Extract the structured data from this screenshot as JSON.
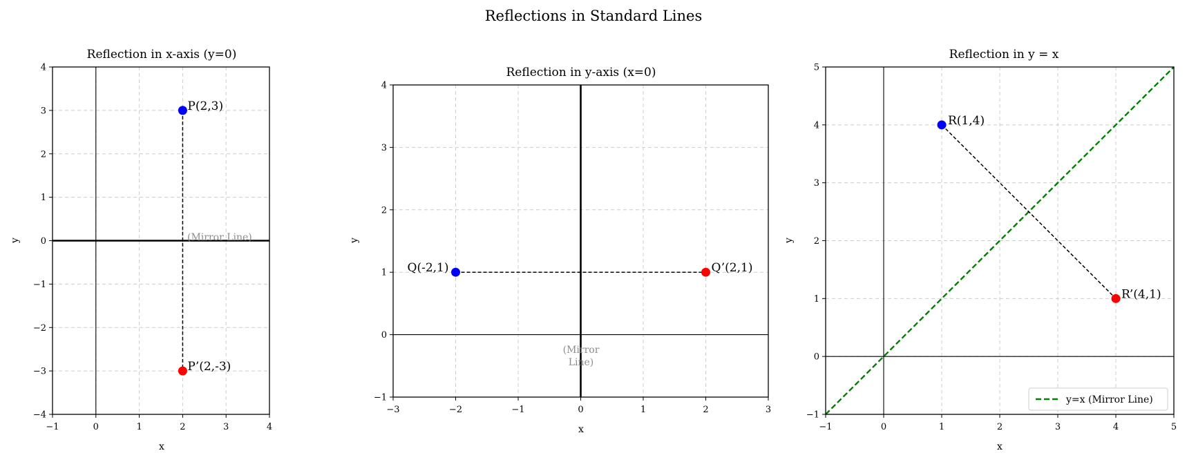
{
  "figure": {
    "suptitle": "Reflections in Standard Lines"
  },
  "chart_data": [
    {
      "type": "scatter",
      "title": "Reflection in x-axis (y=0)",
      "xlabel": "x",
      "ylabel": "y",
      "xlim": [
        -1,
        4
      ],
      "ylim": [
        -4,
        4
      ],
      "xticks": [
        -1,
        0,
        1,
        2,
        3,
        4
      ],
      "yticks": [
        -4,
        -3,
        -2,
        -1,
        0,
        1,
        2,
        3,
        4
      ],
      "xtick_labels": [
        "−1",
        "0",
        "1",
        "2",
        "3",
        "4"
      ],
      "ytick_labels": [
        "−4",
        "−3",
        "−2",
        "−1",
        "0",
        "1",
        "2",
        "3",
        "4"
      ],
      "grid": true,
      "mirror_line": {
        "kind": "horizontal",
        "value": 0
      },
      "points": [
        {
          "label": "P(2,3)",
          "x": 2,
          "y": 3,
          "color": "#0000ff"
        },
        {
          "label": "P’(2,-3)",
          "x": 2,
          "y": -3,
          "color": "#ff0000"
        }
      ],
      "annotation": {
        "text": "(Mirror Line)"
      }
    },
    {
      "type": "scatter",
      "title": "Reflection in y-axis (x=0)",
      "xlabel": "x",
      "ylabel": "y",
      "xlim": [
        -3,
        3
      ],
      "ylim": [
        -1,
        4
      ],
      "xticks": [
        -3,
        -2,
        -1,
        0,
        1,
        2,
        3
      ],
      "yticks": [
        -1,
        0,
        1,
        2,
        3,
        4
      ],
      "xtick_labels": [
        "−3",
        "−2",
        "−1",
        "0",
        "1",
        "2",
        "3"
      ],
      "ytick_labels": [
        "−1",
        "0",
        "1",
        "2",
        "3",
        "4"
      ],
      "grid": true,
      "mirror_line": {
        "kind": "vertical",
        "value": 0
      },
      "points": [
        {
          "label": "Q(-2,1)",
          "x": -2,
          "y": 1,
          "color": "#0000ff"
        },
        {
          "label": "Q’(2,1)",
          "x": 2,
          "y": 1,
          "color": "#ff0000"
        }
      ],
      "annotation": {
        "text": [
          "(Mirror",
          "Line)"
        ]
      }
    },
    {
      "type": "scatter",
      "title": "Reflection in y = x",
      "xlabel": "x",
      "ylabel": "y",
      "xlim": [
        -1,
        5
      ],
      "ylim": [
        -1,
        5
      ],
      "xticks": [
        -1,
        0,
        1,
        2,
        3,
        4,
        5
      ],
      "yticks": [
        -1,
        0,
        1,
        2,
        3,
        4,
        5
      ],
      "xtick_labels": [
        "−1",
        "0",
        "1",
        "2",
        "3",
        "4",
        "5"
      ],
      "ytick_labels": [
        "−1",
        "0",
        "1",
        "2",
        "3",
        "4",
        "5"
      ],
      "grid": true,
      "mirror_line": {
        "kind": "diagonal",
        "color": "#008000"
      },
      "points": [
        {
          "label": "R(1,4)",
          "x": 1,
          "y": 4,
          "color": "#0000ff"
        },
        {
          "label": "R’(4,1)",
          "x": 4,
          "y": 1,
          "color": "#ff0000"
        }
      ],
      "legend": {
        "placement": "lower-right",
        "entries": [
          "y=x (Mirror Line)"
        ]
      }
    }
  ]
}
